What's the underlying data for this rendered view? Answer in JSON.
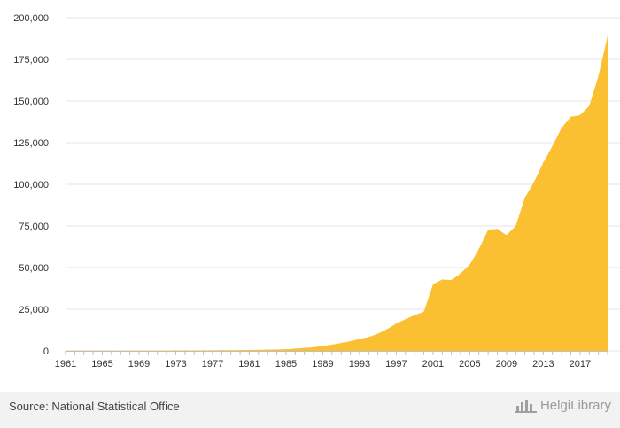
{
  "chart_data": {
    "type": "area",
    "title": "",
    "xlabel": "",
    "ylabel": "",
    "ylim": [
      0,
      200000
    ],
    "yticks": [
      0,
      25000,
      50000,
      75000,
      100000,
      125000,
      150000,
      175000,
      200000
    ],
    "ytick_labels": [
      "0",
      "25,000",
      "50,000",
      "75,000",
      "100,000",
      "125,000",
      "150,000",
      "175,000",
      "200,000"
    ],
    "xtick_labels": [
      "1961",
      "1965",
      "1969",
      "1973",
      "1977",
      "1981",
      "1985",
      "1989",
      "1993",
      "1997",
      "2001",
      "2005",
      "2009",
      "2013",
      "2017"
    ],
    "grid": true,
    "color": "#fbbf32",
    "x": [
      1961,
      1962,
      1963,
      1964,
      1965,
      1966,
      1967,
      1968,
      1969,
      1970,
      1971,
      1972,
      1973,
      1974,
      1975,
      1976,
      1977,
      1978,
      1979,
      1980,
      1981,
      1982,
      1983,
      1984,
      1985,
      1986,
      1987,
      1988,
      1989,
      1990,
      1991,
      1992,
      1993,
      1994,
      1995,
      1996,
      1997,
      1998,
      1999,
      2000,
      2001,
      2002,
      2003,
      2004,
      2005,
      2006,
      2007,
      2008,
      2009,
      2010,
      2011,
      2012,
      2013,
      2014,
      2015,
      2016,
      2017,
      2018,
      2019,
      2020
    ],
    "values": [
      100,
      110,
      120,
      130,
      140,
      150,
      160,
      170,
      180,
      190,
      200,
      220,
      240,
      260,
      280,
      300,
      330,
      370,
      420,
      480,
      550,
      630,
      720,
      830,
      1000,
      1300,
      1700,
      2200,
      2900,
      3700,
      4700,
      5800,
      7200,
      8300,
      10300,
      13000,
      16400,
      19000,
      21500,
      23500,
      40000,
      42800,
      42500,
      46500,
      51800,
      61200,
      72800,
      73200,
      69500,
      75000,
      92000,
      101500,
      113000,
      123000,
      134000,
      140500,
      141500,
      147000,
      165000,
      189000
    ]
  },
  "source": "Source: National Statistical Office",
  "brand": "HelgiLibrary"
}
